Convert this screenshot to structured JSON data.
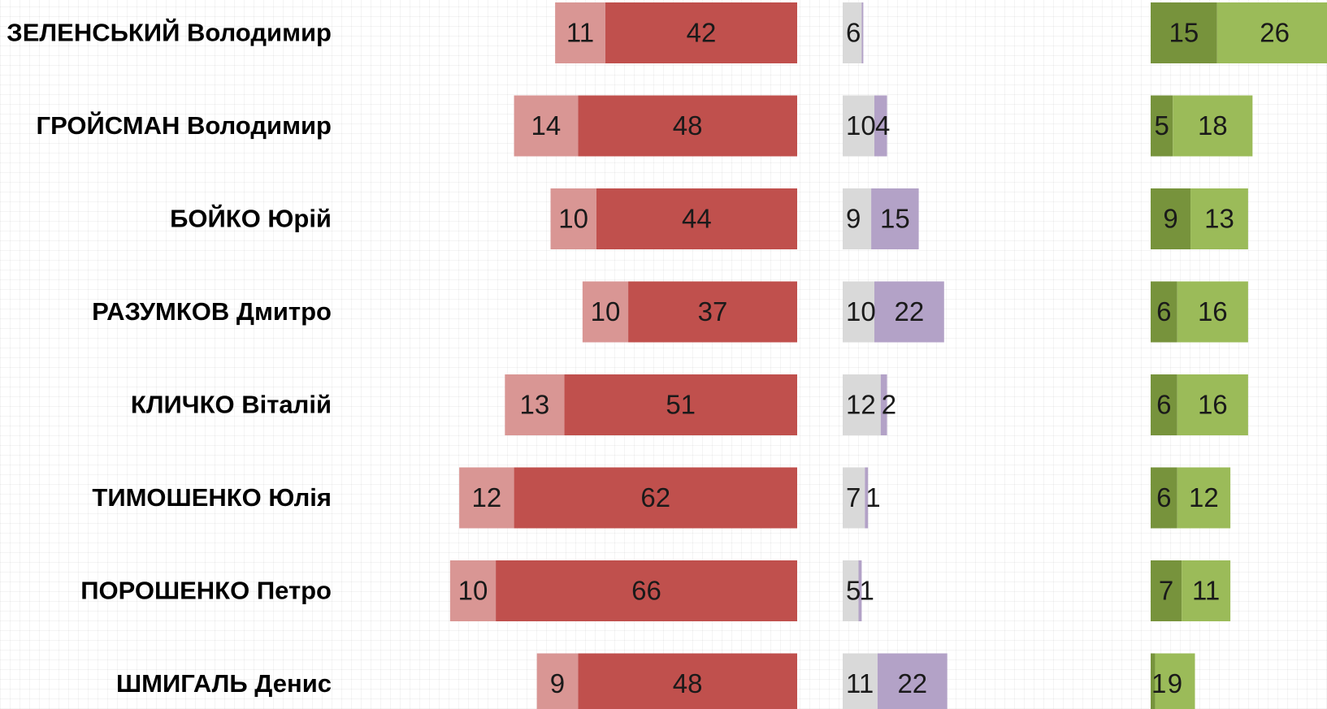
{
  "chart_data": {
    "type": "bar",
    "categories": [
      "ЗЕЛЕНСЬКИЙ Володимир",
      "ГРОЙСМАН Володимир",
      "БОЙКО Юрій",
      "РАЗУМКОВ Дмитро",
      "КЛИЧКО Віталій",
      "ТИМОШЕНКО Юлія",
      "ПОРОШЕНКО Петро",
      "ШМИГАЛЬ Денис"
    ],
    "series": [
      {
        "panel": "left",
        "color": "#d99694",
        "values": [
          11,
          14,
          10,
          10,
          13,
          12,
          10,
          9
        ]
      },
      {
        "panel": "left",
        "color": "#c0504d",
        "values": [
          42,
          48,
          44,
          37,
          51,
          62,
          66,
          48
        ]
      },
      {
        "panel": "middle",
        "color": "#d9d9d9",
        "values": [
          6,
          10,
          9,
          10,
          12,
          7,
          5,
          11
        ]
      },
      {
        "panel": "middle",
        "color": "#b3a2c7",
        "values": [
          0.3,
          4,
          15,
          22,
          2,
          1,
          1,
          22
        ]
      },
      {
        "panel": "right",
        "color": "#77933c",
        "values": [
          15,
          5,
          9,
          6,
          6,
          6,
          7,
          1
        ]
      },
      {
        "panel": "right",
        "color": "#9bbb59",
        "values": [
          26,
          18,
          13,
          16,
          16,
          12,
          11,
          9
        ]
      }
    ],
    "data_labels": {
      "left_1": [
        "11",
        "14",
        "10",
        "10",
        "13",
        "12",
        "10",
        "9"
      ],
      "left_2": [
        "42",
        "48",
        "44",
        "37",
        "51",
        "62",
        "66",
        "48"
      ],
      "middle_1": [
        "6",
        "10",
        "9",
        "10",
        "12",
        "7",
        "5",
        "11"
      ],
      "middle_2": [
        "",
        "4",
        "15",
        "22",
        "2",
        "1",
        "1",
        "22"
      ],
      "right_1": [
        "15",
        "5",
        "9",
        "6",
        "6",
        "6",
        "7",
        "1"
      ],
      "right_2": [
        "26",
        "18",
        "13",
        "16",
        "16",
        "12",
        "11",
        "9"
      ]
    },
    "legend": "none",
    "grid": true
  }
}
